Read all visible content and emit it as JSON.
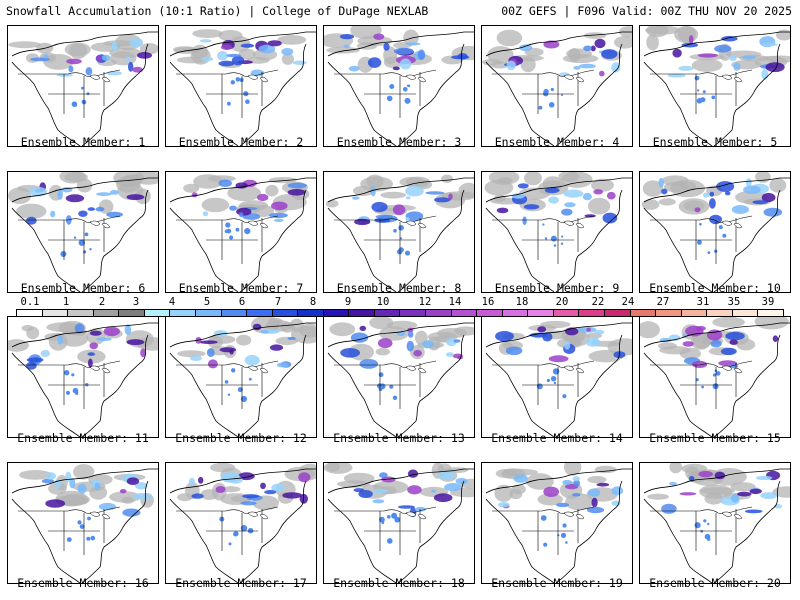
{
  "header": {
    "left_title": "Snowfall Accumulation (10:1 Ratio) | College of DuPage NEXLAB",
    "right_title": "00Z GEFS | F096 Valid: 00Z THU NOV 20 2025"
  },
  "panels": [
    {
      "label": "Ensemble Member: 1"
    },
    {
      "label": "Ensemble Member: 2"
    },
    {
      "label": "Ensemble Member: 3"
    },
    {
      "label": "Ensemble Member: 4"
    },
    {
      "label": "Ensemble Member: 5"
    },
    {
      "label": "Ensemble Member: 6"
    },
    {
      "label": "Ensemble Member: 7"
    },
    {
      "label": "Ensemble Member: 8"
    },
    {
      "label": "Ensemble Member: 9"
    },
    {
      "label": "Ensemble Member: 10"
    },
    {
      "label": "Ensemble Member: 11"
    },
    {
      "label": "Ensemble Member: 12"
    },
    {
      "label": "Ensemble Member: 13"
    },
    {
      "label": "Ensemble Member: 14"
    },
    {
      "label": "Ensemble Member: 15"
    },
    {
      "label": "Ensemble Member: 16"
    },
    {
      "label": "Ensemble Member: 17"
    },
    {
      "label": "Ensemble Member: 18"
    },
    {
      "label": "Ensemble Member: 19"
    },
    {
      "label": "Ensemble Member: 20"
    }
  ],
  "colorbar": {
    "ticks": [
      "0.1",
      "1",
      "2",
      "3",
      "4",
      "5",
      "6",
      "7",
      "8",
      "9",
      "10",
      "12",
      "14",
      "16",
      "18",
      "20",
      "22",
      "24",
      "27",
      "31",
      "35",
      "39"
    ],
    "colors": [
      "#ffffff",
      "#e6e6e6",
      "#c8c8c8",
      "#a0a0a0",
      "#7e7e7e",
      "#b4f0fa",
      "#96d2fa",
      "#78b9fa",
      "#508cf0",
      "#3c6ef0",
      "#2850dc",
      "#1432c8",
      "#2814b4",
      "#4614a0",
      "#6428b4",
      "#7a32be",
      "#9b41c8",
      "#b450d2",
      "#c85ad7",
      "#d76ee1",
      "#e682e6",
      "#e65aaa",
      "#dc3c8c",
      "#c8286e",
      "#e6786e",
      "#f09682",
      "#f5b4a0",
      "#fad2be",
      "#fce6d7",
      "#fff5eb"
    ]
  }
}
